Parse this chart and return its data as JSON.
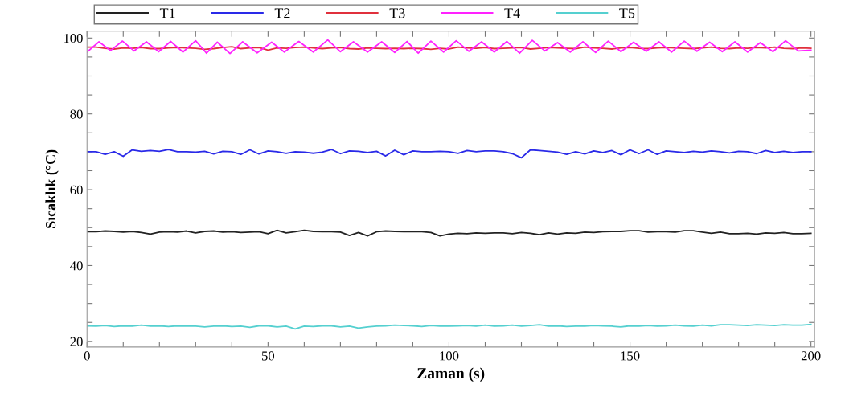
{
  "chart_data": {
    "type": "line",
    "xlabel": "Zaman (s)",
    "ylabel": "Sıcaklık (°C)",
    "x": [
      0,
      2.5,
      5,
      7.5,
      10,
      12.5,
      15,
      17.5,
      20,
      22.5,
      25,
      27.5,
      30,
      32.5,
      35,
      37.5,
      40,
      42.5,
      45,
      47.5,
      50,
      52.5,
      55,
      57.5,
      60,
      62.5,
      65,
      67.5,
      70,
      72.5,
      75,
      77.5,
      80,
      82.5,
      85,
      87.5,
      90,
      92.5,
      95,
      97.5,
      100,
      102.5,
      105,
      107.5,
      110,
      112.5,
      115,
      117.5,
      120,
      122.5,
      125,
      127.5,
      130,
      132.5,
      135,
      137.5,
      140,
      142.5,
      145,
      147.5,
      150,
      152.5,
      155,
      157.5,
      160,
      162.5,
      165,
      167.5,
      170,
      172.5,
      175,
      177.5,
      180,
      182.5,
      185,
      187.5,
      190,
      192.5,
      195,
      197.5,
      200
    ],
    "series": [
      {
        "name": "T1",
        "color": "#222222",
        "values": [
          48.9,
          48.9,
          49.1,
          49.0,
          48.8,
          49.0,
          48.7,
          48.3,
          48.8,
          48.9,
          48.8,
          49.1,
          48.6,
          49.0,
          49.1,
          48.8,
          48.9,
          48.7,
          48.8,
          48.9,
          48.4,
          49.3,
          48.6,
          48.9,
          49.3,
          49.0,
          48.9,
          48.9,
          48.8,
          47.9,
          48.7,
          47.8,
          48.9,
          49.1,
          49.0,
          48.9,
          48.9,
          48.9,
          48.7,
          47.8,
          48.3,
          48.5,
          48.4,
          48.6,
          48.5,
          48.6,
          48.6,
          48.4,
          48.7,
          48.5,
          48.1,
          48.6,
          48.3,
          48.6,
          48.5,
          48.8,
          48.7,
          48.9,
          49.0,
          49.0,
          49.2,
          49.2,
          48.8,
          48.9,
          48.9,
          48.8,
          49.2,
          49.2,
          48.8,
          48.5,
          48.8,
          48.4,
          48.4,
          48.5,
          48.3,
          48.6,
          48.5,
          48.7,
          48.4,
          48.4,
          48.5
        ]
      },
      {
        "name": "T2",
        "color": "#2a2ae8",
        "values": [
          70.0,
          70.0,
          69.3,
          70.0,
          68.8,
          70.5,
          70.1,
          70.3,
          70.1,
          70.6,
          70.0,
          70.0,
          69.9,
          70.1,
          69.4,
          70.1,
          70.0,
          69.3,
          70.5,
          69.4,
          70.2,
          70.0,
          69.6,
          70.0,
          69.9,
          69.6,
          69.9,
          70.6,
          69.5,
          70.2,
          70.1,
          69.8,
          70.1,
          68.9,
          70.4,
          69.2,
          70.2,
          70.0,
          70.0,
          70.1,
          70.0,
          69.6,
          70.3,
          70.0,
          70.2,
          70.2,
          70.0,
          69.5,
          68.4,
          70.5,
          70.3,
          70.1,
          69.9,
          69.3,
          70.0,
          69.4,
          70.2,
          69.8,
          70.3,
          69.2,
          70.5,
          69.5,
          70.5,
          69.3,
          70.2,
          70.0,
          69.8,
          70.1,
          69.9,
          70.2,
          70.0,
          69.7,
          70.1,
          70.0,
          69.5,
          70.3,
          69.8,
          70.1,
          69.8,
          70.0,
          70.0
        ]
      },
      {
        "name": "T3",
        "color": "#e0303c",
        "values": [
          97.6,
          97.6,
          97.3,
          97.1,
          97.4,
          97.3,
          97.5,
          97.2,
          97.2,
          97.4,
          97.5,
          97.4,
          97.3,
          97.0,
          97.2,
          97.5,
          97.7,
          97.2,
          97.4,
          97.5,
          96.8,
          97.4,
          97.3,
          97.5,
          97.6,
          97.4,
          97.2,
          97.4,
          97.5,
          97.2,
          97.1,
          97.4,
          97.3,
          97.2,
          97.3,
          97.2,
          97.3,
          97.2,
          97.0,
          97.3,
          97.1,
          97.6,
          97.4,
          97.3,
          97.5,
          97.2,
          97.3,
          97.4,
          97.5,
          97.1,
          97.3,
          97.5,
          97.4,
          97.3,
          97.2,
          97.6,
          97.4,
          97.3,
          97.1,
          97.4,
          97.5,
          97.3,
          97.2,
          97.4,
          97.5,
          97.4,
          97.3,
          97.2,
          97.4,
          97.6,
          97.3,
          97.2,
          97.4,
          97.3,
          97.5,
          97.4,
          97.6,
          97.3,
          97.2,
          97.4,
          97.3
        ]
      },
      {
        "name": "T4",
        "color": "#ff22ff",
        "x": [
          0,
          3.3,
          6.5,
          9.8,
          13,
          16.4,
          19.8,
          23.1,
          26.5,
          30,
          33,
          36,
          39.5,
          43,
          47,
          51,
          54.5,
          58.5,
          62.5,
          66.5,
          70,
          73.6,
          77.5,
          81.4,
          85,
          88.4,
          91.5,
          95,
          98.5,
          102,
          105.5,
          109,
          112.5,
          116,
          119.5,
          123,
          126.5,
          130,
          133.5,
          137,
          140.5,
          144,
          147.5,
          151,
          154.5,
          158,
          161.5,
          165,
          168.5,
          172,
          175.5,
          179,
          182.5,
          186,
          189.5,
          193,
          196.5,
          200
        ],
        "values": [
          96.3,
          99.0,
          96.7,
          99.2,
          96.6,
          99.0,
          96.4,
          99.1,
          96.3,
          99.3,
          96.0,
          98.9,
          95.9,
          99.0,
          96.1,
          98.9,
          96.3,
          99.1,
          96.3,
          99.5,
          96.4,
          99.0,
          96.3,
          99.0,
          96.2,
          99.1,
          96.0,
          99.2,
          96.3,
          99.3,
          96.5,
          99.0,
          96.3,
          99.1,
          96.0,
          99.4,
          96.6,
          98.8,
          96.3,
          99.0,
          96.2,
          99.2,
          96.4,
          98.9,
          96.5,
          99.0,
          96.3,
          99.2,
          96.5,
          98.9,
          96.4,
          99.0,
          96.3,
          98.8,
          96.4,
          99.3,
          96.6,
          96.8
        ]
      },
      {
        "name": "T5",
        "color": "#55d0d0",
        "values": [
          24.1,
          24.0,
          24.2,
          23.9,
          24.1,
          24.0,
          24.3,
          24.0,
          24.1,
          23.9,
          24.1,
          24.0,
          24.0,
          23.8,
          24.0,
          24.1,
          23.9,
          24.0,
          23.7,
          24.1,
          24.1,
          23.8,
          24.0,
          23.3,
          24.0,
          23.9,
          24.1,
          24.1,
          23.8,
          24.0,
          23.5,
          23.8,
          24.0,
          24.1,
          24.3,
          24.2,
          24.1,
          23.9,
          24.2,
          24.0,
          24.0,
          24.1,
          24.2,
          24.0,
          24.3,
          24.0,
          24.1,
          24.3,
          24.0,
          24.2,
          24.4,
          24.0,
          24.1,
          23.9,
          24.0,
          24.0,
          24.2,
          24.1,
          24.0,
          23.8,
          24.1,
          24.0,
          24.2,
          24.0,
          24.1,
          24.3,
          24.1,
          24.0,
          24.3,
          24.1,
          24.4,
          24.4,
          24.3,
          24.2,
          24.4,
          24.3,
          24.2,
          24.4,
          24.3,
          24.3,
          24.5
        ]
      }
    ],
    "xlim": [
      0,
      201
    ],
    "ylim": [
      18.5,
      101.8
    ],
    "xticks": [
      0,
      {
        "value": 10,
        "label": null
      },
      {
        "value": 20,
        "label": null
      },
      {
        "value": 30,
        "label": null
      },
      {
        "value": 40,
        "label": null
      },
      50,
      {
        "value": 60,
        "label": null
      },
      {
        "value": 70,
        "label": null
      },
      {
        "value": 80,
        "label": null
      },
      {
        "value": 90,
        "label": null
      },
      100,
      {
        "value": 110,
        "label": null
      },
      {
        "value": 120,
        "label": null
      },
      {
        "value": 130,
        "label": null
      },
      {
        "value": 140,
        "label": null
      },
      150,
      {
        "value": 160,
        "label": null
      },
      {
        "value": 170,
        "label": null
      },
      {
        "value": 180,
        "label": null
      },
      {
        "value": 190,
        "label": null
      },
      200
    ],
    "yticks": [
      20,
      {
        "value": 25,
        "label": null
      },
      {
        "value": 30,
        "label": null
      },
      {
        "value": 35,
        "label": null
      },
      40,
      {
        "value": 45,
        "label": null
      },
      {
        "value": 50,
        "label": null
      },
      {
        "value": 55,
        "label": null
      },
      60,
      {
        "value": 65,
        "label": null
      },
      {
        "value": 70,
        "label": null
      },
      {
        "value": 75,
        "label": null
      },
      80,
      {
        "value": 85,
        "label": null
      },
      {
        "value": 90,
        "label": null
      },
      {
        "value": 95,
        "label": null
      },
      100
    ],
    "grid": false,
    "legend": "top",
    "marker": "none",
    "line_style": "solid"
  }
}
